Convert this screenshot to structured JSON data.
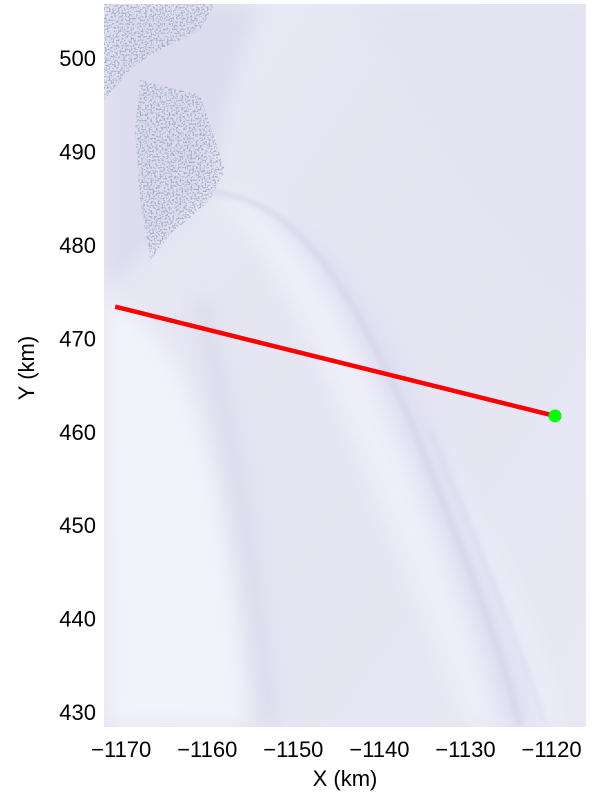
{
  "chart_data": {
    "type": "map",
    "xlabel": "X (km)",
    "ylabel": "Y (km)",
    "xlim": [
      -1172,
      -1116
    ],
    "ylim": [
      428.4,
      505.8
    ],
    "xticks": [
      -1170,
      -1160,
      -1150,
      -1140,
      -1130,
      -1120
    ],
    "xtick_labels": [
      "−1170",
      "−1160",
      "−1150",
      "−1140",
      "−1130",
      "−1120"
    ],
    "yticks": [
      430,
      440,
      450,
      460,
      470,
      480,
      490,
      500
    ],
    "ytick_labels": [
      "430",
      "440",
      "450",
      "460",
      "470",
      "480",
      "490",
      "500"
    ],
    "grid": false,
    "background": "satellite imagery of ice/snow surface",
    "series": [
      {
        "type": "line",
        "x": [
          -1170.7,
          -1119.6
        ],
        "y": [
          473.4,
          461.7
        ],
        "color": "#ff0000"
      },
      {
        "type": "marker",
        "x": [
          -1119.6
        ],
        "y": [
          461.7
        ],
        "color": "#00ff00",
        "marker": "circle"
      }
    ]
  },
  "colors": {
    "line": "#ff0000",
    "marker": "#00ff00",
    "ice_base": "#e6e6f4"
  }
}
